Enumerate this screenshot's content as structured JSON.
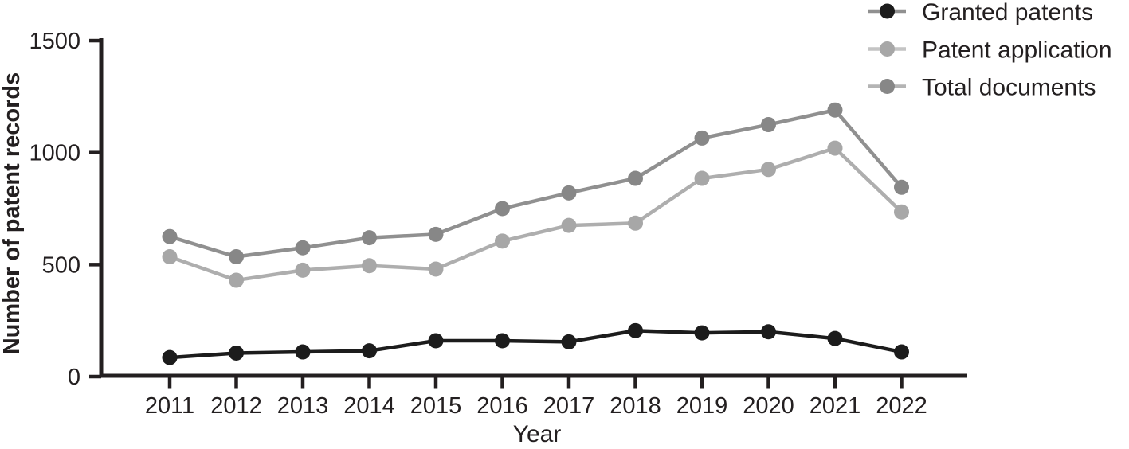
{
  "figure": {
    "background_color": "#ffffff",
    "ink_color": "#231f20"
  },
  "chart_data": {
    "type": "line",
    "title": "",
    "xlabel": "Year",
    "ylabel": "Number of patent records",
    "x": [
      2011,
      2012,
      2013,
      2014,
      2015,
      2016,
      2017,
      2018,
      2019,
      2020,
      2021,
      2022
    ],
    "ylim": [
      0,
      1500
    ],
    "yticks": [
      0,
      500,
      1000,
      1500
    ],
    "grid": false,
    "legend_position": "top-right",
    "series": [
      {
        "name": "Granted patents",
        "values": [
          85,
          105,
          110,
          115,
          160,
          160,
          155,
          205,
          195,
          200,
          170,
          110
        ],
        "marker_color": "#1c1c1c",
        "line_color": "#1c1c1c",
        "legend_line_color": "#909090"
      },
      {
        "name": "Patent application",
        "values": [
          535,
          430,
          475,
          495,
          480,
          605,
          675,
          685,
          885,
          925,
          1020,
          735
        ],
        "marker_color": "#a7a7a7",
        "line_color": "#aeaeae",
        "legend_line_color": "#c4c4c4"
      },
      {
        "name": "Total documents",
        "values": [
          625,
          535,
          575,
          620,
          635,
          750,
          820,
          885,
          1065,
          1125,
          1190,
          845
        ],
        "marker_color": "#878787",
        "line_color": "#909090",
        "legend_line_color": "#b4b4b4"
      }
    ]
  }
}
